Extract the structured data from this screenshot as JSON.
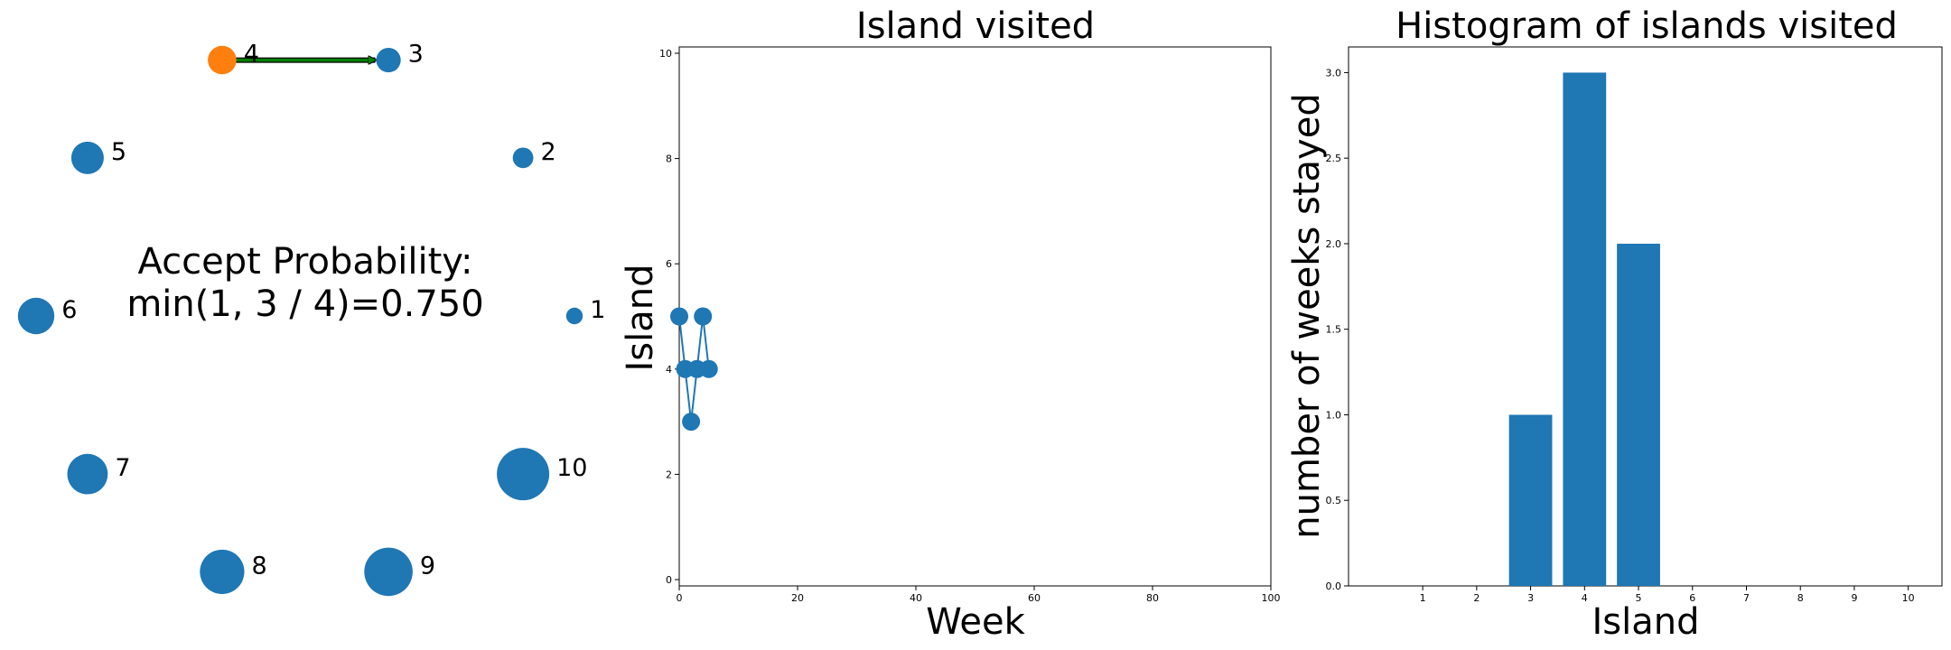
{
  "colors": {
    "node": "#1f77b4",
    "current_node": "#ff7f0e",
    "arrow_fill": "#008000",
    "arrow_edge": "#000000",
    "bar": "#1f77b4",
    "line": "#1f77b4"
  },
  "chart_data": [
    {
      "type": "network",
      "islands": [
        {
          "label": "1",
          "population": 1
        },
        {
          "label": "2",
          "population": 2
        },
        {
          "label": "3",
          "population": 3
        },
        {
          "label": "4",
          "population": 4
        },
        {
          "label": "5",
          "population": 5
        },
        {
          "label": "6",
          "population": 6
        },
        {
          "label": "7",
          "population": 7
        },
        {
          "label": "8",
          "population": 8
        },
        {
          "label": "9",
          "population": 9
        },
        {
          "label": "10",
          "population": 10
        }
      ],
      "current_island": "4",
      "proposed_island": "3",
      "annotation": [
        "Accept Probability:",
        "min(1, 3 / 4)=0.750"
      ]
    },
    {
      "type": "line",
      "title": "Island visited",
      "xlabel": "Week",
      "ylabel": "Island",
      "xlim": [
        0,
        100
      ],
      "ylim": [
        0,
        10
      ],
      "x_ticks": [
        0,
        20,
        40,
        60,
        80,
        100
      ],
      "y_ticks": [
        0,
        2,
        4,
        6,
        8,
        10
      ],
      "x": [
        0,
        1,
        2,
        3,
        4,
        5
      ],
      "values": [
        5,
        4,
        3,
        4,
        5,
        4
      ]
    },
    {
      "type": "bar",
      "title": "Histogram of islands visited",
      "xlabel": "Island",
      "ylabel": "number of weeks stayed",
      "categories": [
        "1",
        "2",
        "3",
        "4",
        "5",
        "6",
        "7",
        "8",
        "9",
        "10"
      ],
      "values": [
        0,
        0,
        1,
        3,
        2,
        0,
        0,
        0,
        0,
        0
      ],
      "ylim": [
        0,
        3.15
      ],
      "y_ticks": [
        "0.0",
        "0.5",
        "1.0",
        "1.5",
        "2.0",
        "2.5",
        "3.0"
      ]
    }
  ]
}
